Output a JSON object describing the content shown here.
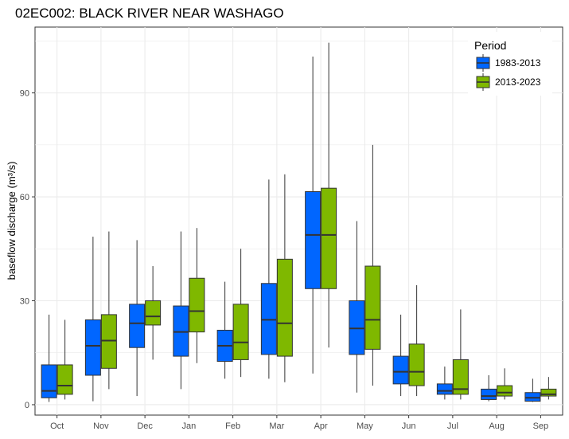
{
  "chart_data": {
    "type": "boxplot",
    "title": "02EC002: BLACK RIVER NEAR WASHAGO",
    "xlabel": "",
    "ylabel": "baseflow discharge (m³/s)",
    "ylim": [
      -3,
      109
    ],
    "yticks": [
      0,
      30,
      60,
      90
    ],
    "grid": true,
    "legend": {
      "title": "Period",
      "position": "top-right"
    },
    "categories": [
      "Oct",
      "Nov",
      "Dec",
      "Jan",
      "Feb",
      "Mar",
      "Apr",
      "May",
      "Jun",
      "Jul",
      "Aug",
      "Sep"
    ],
    "series": [
      {
        "name": "1983-2013",
        "color": "#0066ff",
        "boxes": [
          {
            "min": 0.8,
            "q1": 2.0,
            "median": 4.0,
            "q3": 11.5,
            "max": 26.0
          },
          {
            "min": 1.0,
            "q1": 8.5,
            "median": 17.0,
            "q3": 24.5,
            "max": 48.5
          },
          {
            "min": 2.5,
            "q1": 16.5,
            "median": 23.5,
            "q3": 29.0,
            "max": 47.5
          },
          {
            "min": 4.5,
            "q1": 14.0,
            "median": 21.0,
            "q3": 28.5,
            "max": 50.0
          },
          {
            "min": 7.5,
            "q1": 12.5,
            "median": 17.0,
            "q3": 21.5,
            "max": 35.5
          },
          {
            "min": 7.5,
            "q1": 14.5,
            "median": 24.5,
            "q3": 35.0,
            "max": 65.0
          },
          {
            "min": 9.0,
            "q1": 33.5,
            "median": 49.0,
            "q3": 61.5,
            "max": 100.5
          },
          {
            "min": 3.5,
            "q1": 14.5,
            "median": 22.0,
            "q3": 30.0,
            "max": 53.0
          },
          {
            "min": 2.5,
            "q1": 6.0,
            "median": 9.5,
            "q3": 14.0,
            "max": 26.0
          },
          {
            "min": 1.5,
            "q1": 3.0,
            "median": 4.0,
            "q3": 6.0,
            "max": 11.0
          },
          {
            "min": 1.0,
            "q1": 1.5,
            "median": 2.5,
            "q3": 4.5,
            "max": 8.5
          },
          {
            "min": 0.8,
            "q1": 1.0,
            "median": 2.0,
            "q3": 3.5,
            "max": 7.5
          }
        ]
      },
      {
        "name": "2013-2023",
        "color": "#7fb800",
        "boxes": [
          {
            "min": 1.5,
            "q1": 3.0,
            "median": 5.5,
            "q3": 11.5,
            "max": 24.5
          },
          {
            "min": 4.5,
            "q1": 10.5,
            "median": 18.5,
            "q3": 26.0,
            "max": 50.0
          },
          {
            "min": 13.0,
            "q1": 23.0,
            "median": 25.5,
            "q3": 30.0,
            "max": 40.0
          },
          {
            "min": 12.0,
            "q1": 21.0,
            "median": 27.0,
            "q3": 36.5,
            "max": 51.0
          },
          {
            "min": 8.0,
            "q1": 13.0,
            "median": 18.0,
            "q3": 29.0,
            "max": 45.0
          },
          {
            "min": 6.5,
            "q1": 14.0,
            "median": 23.5,
            "q3": 42.0,
            "max": 66.5
          },
          {
            "min": 16.5,
            "q1": 33.5,
            "median": 49.0,
            "q3": 62.5,
            "max": 104.5
          },
          {
            "min": 5.5,
            "q1": 16.0,
            "median": 24.5,
            "q3": 40.0,
            "max": 75.0
          },
          {
            "min": 2.5,
            "q1": 5.5,
            "median": 9.5,
            "q3": 17.5,
            "max": 34.5
          },
          {
            "min": 1.5,
            "q1": 3.0,
            "median": 4.5,
            "q3": 13.0,
            "max": 27.5
          },
          {
            "min": 1.5,
            "q1": 2.5,
            "median": 3.5,
            "q3": 5.5,
            "max": 10.5
          },
          {
            "min": 1.5,
            "q1": 2.5,
            "median": 3.0,
            "q3": 4.5,
            "max": 8.0
          }
        ]
      }
    ]
  }
}
